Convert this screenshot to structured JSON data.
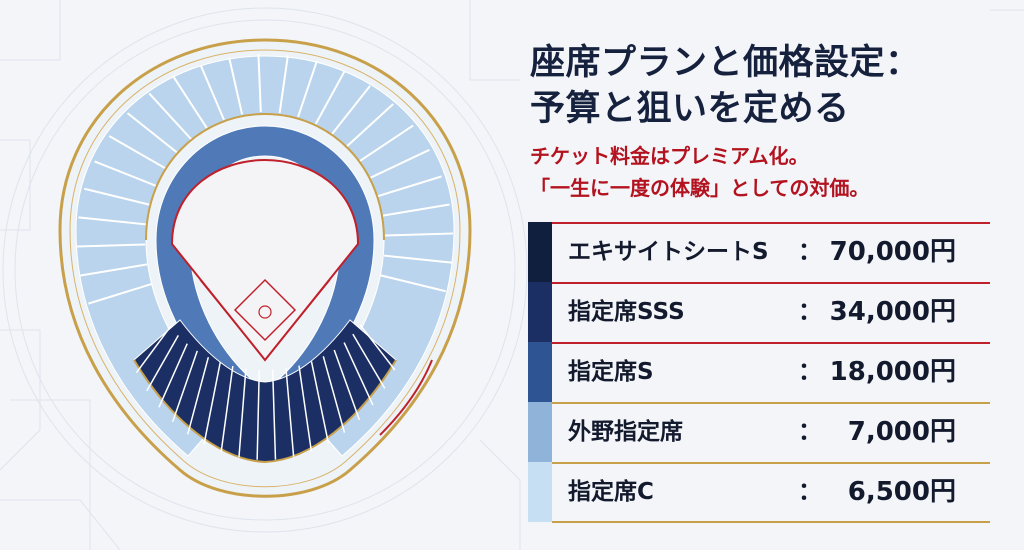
{
  "title": {
    "line1": "座席プランと価格設定：",
    "line2": "予算と狙いを定める"
  },
  "subtitle": {
    "line1": "チケット料金はプレミアム化。",
    "line2": "「一生に一度の体験」としての対価。"
  },
  "colors": {
    "title": "#16213e",
    "subtitle": "#b3121f",
    "gold": "#c8a04a",
    "red_line": "#c0202a"
  },
  "price_list": [
    {
      "name": "エキサイトシートS",
      "separator": "：",
      "price": "70,000円",
      "swatch_color": "#0f1f3d"
    },
    {
      "name": "指定席SSS",
      "separator": "：",
      "price": "34,000円",
      "swatch_color": "#1c2f64"
    },
    {
      "name": "指定席S",
      "separator": "：",
      "price": "18,000円",
      "swatch_color": "#2f5493"
    },
    {
      "name": "外野指定席",
      "separator": "：",
      "price": "7,000円",
      "swatch_color": "#8fb3d9"
    },
    {
      "name": "指定席C",
      "separator": "：",
      "price": "6,500円",
      "swatch_color": "#c7dff2"
    }
  ],
  "stadium_map": {
    "icon": "baseball-stadium-seating-map",
    "zones": [
      "outer-upper-light",
      "upper-medium",
      "lower-blue",
      "infield-dark-navy",
      "field"
    ]
  }
}
